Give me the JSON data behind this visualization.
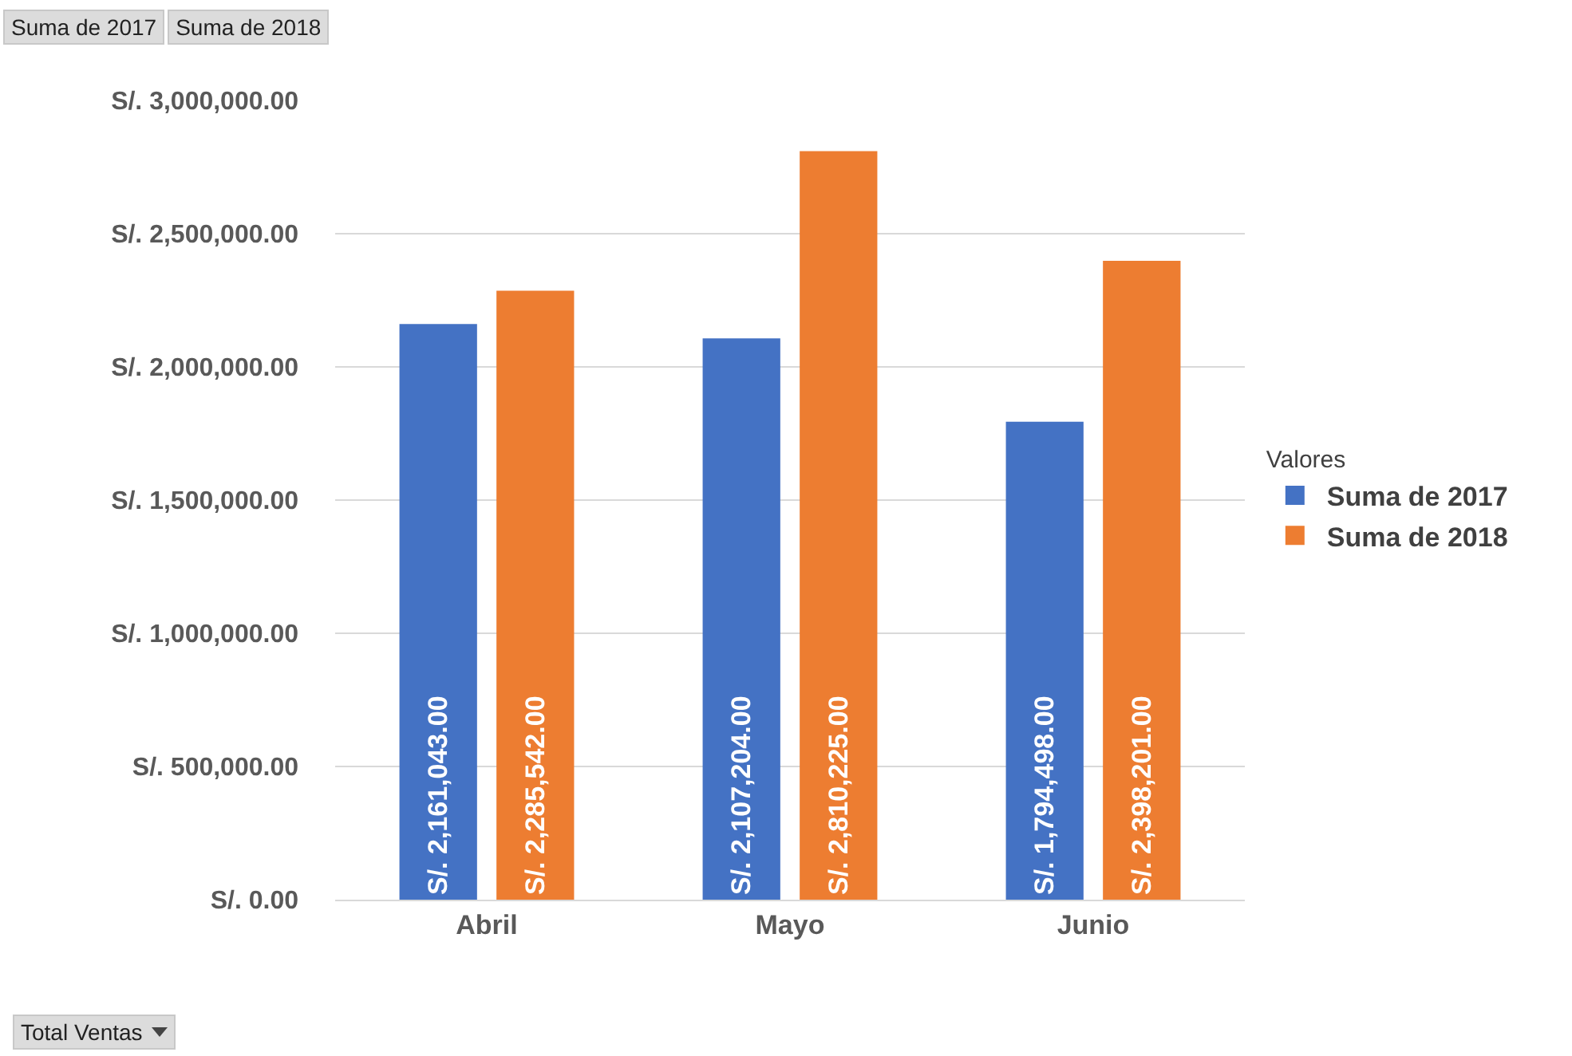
{
  "chart_data": {
    "type": "bar",
    "categories": [
      "Abril",
      "Mayo",
      "Junio"
    ],
    "series": [
      {
        "name": "Suma de 2017",
        "color": "#4472c4",
        "values": [
          2161043,
          2107204,
          1794498
        ],
        "value_labels": [
          "S/. 2,161,043.00",
          "S/. 2,107,204.00",
          "S/. 1,794,498.00"
        ]
      },
      {
        "name": "Suma de 2018",
        "color": "#ed7d31",
        "values": [
          2285542,
          2810225,
          2398201
        ],
        "value_labels": [
          "S/. 2,285,542.00",
          "S/. 2,810,225.00",
          "S/. 2,398,201.00"
        ]
      }
    ],
    "ylim": [
      0,
      3000000
    ],
    "yticks": [
      {
        "value": 0,
        "label": "S/. 0.00"
      },
      {
        "value": 500000,
        "label": "S/. 500,000.00"
      },
      {
        "value": 1000000,
        "label": "S/. 1,000,000.00"
      },
      {
        "value": 1500000,
        "label": "S/. 1,500,000.00"
      },
      {
        "value": 2000000,
        "label": "S/. 2,000,000.00"
      },
      {
        "value": 2500000,
        "label": "S/. 2,500,000.00"
      },
      {
        "value": 3000000,
        "label": "S/. 3,000,000.00"
      }
    ],
    "grid": "y",
    "legend": "right",
    "legend_title": "Valores",
    "annotations": [
      "Suma de 2017",
      "Suma de 2018",
      "Total Ventas"
    ]
  }
}
